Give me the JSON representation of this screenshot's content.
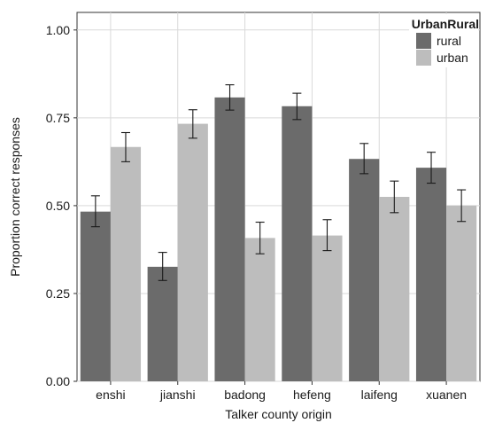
{
  "chart_data": {
    "type": "bar",
    "xlabel": "Talker county origin",
    "ylabel": "Proportion correct responses",
    "ylim": [
      0,
      1.05
    ],
    "yticks": [
      "0.00",
      "0.25",
      "0.50",
      "0.75",
      "1.00"
    ],
    "grid": true,
    "legend": {
      "title": "UrbanRural",
      "position": "top-right"
    },
    "categories": [
      "enshi",
      "jianshi",
      "badong",
      "hefeng",
      "laifeng",
      "xuanen"
    ],
    "series": [
      {
        "name": "rural",
        "color": "#6b6b6b",
        "values": [
          0.483,
          0.326,
          0.808,
          0.783,
          0.633,
          0.608
        ],
        "error_low": [
          0.44,
          0.287,
          0.772,
          0.745,
          0.591,
          0.564
        ],
        "error_high": [
          0.528,
          0.367,
          0.844,
          0.82,
          0.677,
          0.652
        ]
      },
      {
        "name": "urban",
        "color": "#bdbdbd",
        "values": [
          0.667,
          0.733,
          0.408,
          0.415,
          0.525,
          0.5
        ],
        "error_low": [
          0.625,
          0.692,
          0.363,
          0.372,
          0.48,
          0.455
        ],
        "error_high": [
          0.708,
          0.773,
          0.453,
          0.46,
          0.57,
          0.545
        ]
      }
    ]
  }
}
